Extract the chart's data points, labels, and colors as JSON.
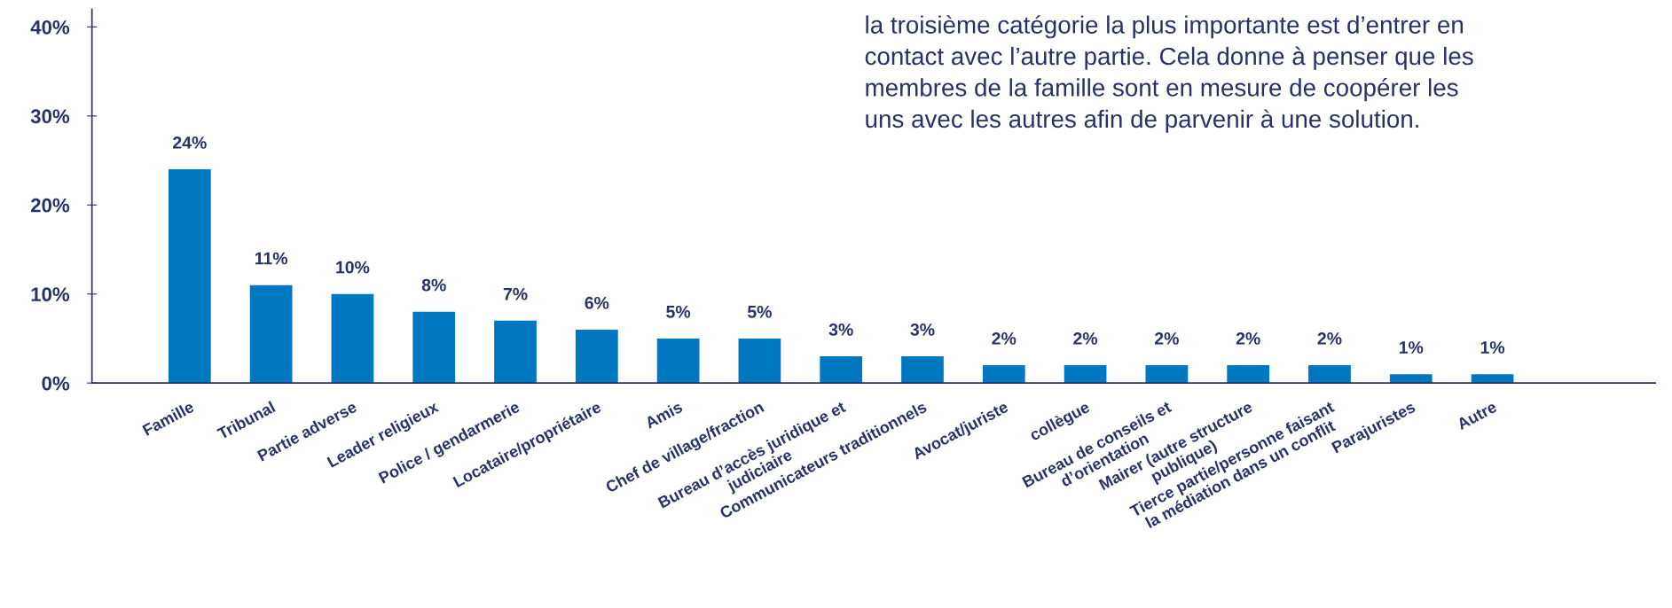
{
  "chart_data": {
    "type": "bar",
    "categories": [
      "Famille",
      "Tribunal",
      "Partie adverse",
      "Leader religieux",
      "Police / gendarmerie",
      "Locataire/propriétaire",
      "Amis",
      "Chef de village/fraction",
      "Bureau d’accès juridique et\njudiciaire",
      "Communicateurs traditionnels",
      "Avocat/juriste",
      "collègue",
      "Bureau de conseils et\nd’orientation",
      "Mairer (autre structure\npublique)",
      "Tierce partie/personne faisant\nla médiation dans un conflit",
      "Parajuristes",
      "Autre"
    ],
    "values": [
      24,
      11,
      10,
      8,
      7,
      6,
      5,
      5,
      3,
      3,
      2,
      2,
      2,
      2,
      2,
      1,
      1
    ],
    "value_labels": [
      "24%",
      "11%",
      "10%",
      "8%",
      "7%",
      "6%",
      "5%",
      "5%",
      "3%",
      "3%",
      "2%",
      "2%",
      "2%",
      "2%",
      "2%",
      "1%",
      "1%"
    ],
    "color": "#0078c1",
    "ylim": [
      0,
      42
    ],
    "yticks": [
      {
        "value": 0,
        "label": "0%"
      },
      {
        "value": 10,
        "label": "10%"
      },
      {
        "value": 20,
        "label": "20%"
      },
      {
        "value": 30,
        "label": "30%"
      },
      {
        "value": 40,
        "label": "40%"
      }
    ],
    "grid": false,
    "legend": false,
    "annotations": [
      "la troisième catégorie la plus importante est d’entrer en\ncontact avec l’autre partie. Cela donne à penser que les\nmembres de la famille sont en mesure de coopérer les\nuns avec les autres afin de parvenir à une solution."
    ]
  }
}
